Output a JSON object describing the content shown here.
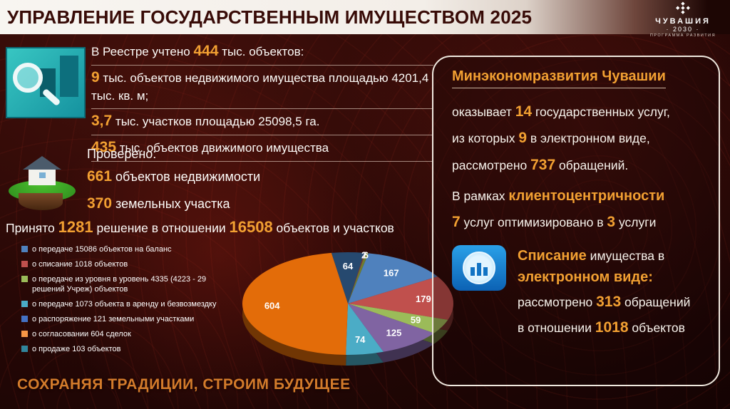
{
  "accent_color": "#F2A032",
  "header": {
    "title": "УПРАВЛЕНИЕ ГОСУДАРСТВЕННЫМ ИМУЩЕСТВОМ 2025"
  },
  "logo": {
    "ornament_row1": "◆",
    "ornament_row2": "◆ ◆ ◆",
    "ornament_row3": "◆",
    "region": "ЧУВАШИЯ",
    "year": "· 2030 ·",
    "subtitle": "ПРОГРАММА РАЗВИТИЯ"
  },
  "registry": {
    "line1_pre": "В Реестре учтено ",
    "line1_num": "444",
    "line1_post": " тыс. объектов:",
    "line2_num": "9",
    "line2_post": " тыс. объектов недвижимого имущества площадью 4201,4 тыс. кв. м;",
    "line3_num": "3,7",
    "line3_post": " тыс.  участков площадью 25098,5 га.",
    "line4_num": "435",
    "line4_post": " тыс. объектов движимого имущества"
  },
  "checked": {
    "title": "Проверено:",
    "line1_num": "661",
    "line1_post": " объектов недвижимости",
    "line2_num": "370",
    "line2_post": " земельных участка"
  },
  "decisions": {
    "pre": "Принято ",
    "num1": "1281",
    "mid": " решение в отношении ",
    "num2": "16508",
    "post": " объектов и участков"
  },
  "chart_data": {
    "type": "pie",
    "style": "3d",
    "labels": [
      "64",
      "2",
      "6",
      "167",
      "179",
      "59",
      "125",
      "74",
      "604"
    ],
    "values": [
      64,
      2,
      6,
      167,
      179,
      59,
      125,
      74,
      604
    ],
    "colors": [
      "#26496f",
      "#8c3a36",
      "#6f7d2f",
      "#4f81bd",
      "#c0504d",
      "#9bbb59",
      "#8064a2",
      "#4bacc6",
      "#e36c09"
    ],
    "start_angle_deg": -9,
    "legend_position": "left",
    "legend": [
      {
        "color": "#4f81bd",
        "label": "о передаче 15086 объектов на баланс"
      },
      {
        "color": "#c0504d",
        "label": "о списание 1018 объектов"
      },
      {
        "color": "#9bbb59",
        "label": "о передаче из уровня в уровень 4335 (4223 - 29 решений Учреж) объектов"
      },
      {
        "color": "#4bacc6",
        "label": "о передаче 1073 объекта в аренду и безвозмездку"
      },
      {
        "color": "#4472c4",
        "label": "о распоряжение 121 земельными участками"
      },
      {
        "color": "#f79646",
        "label": "о согласовании 604 сделок"
      },
      {
        "color": "#31859c",
        "label": "о продаже 103 объектов"
      }
    ]
  },
  "ministry": {
    "title": "Минэкономразвития Чувашии",
    "l1_pre": "оказывает  ",
    "l1_num": "14",
    "l1_post": " государственных услуг,",
    "l2_pre": "из которых ",
    "l2_num": "9",
    "l2_post": "  в электронном виде,",
    "l3_pre": "рассмотрено ",
    "l3_num": "737",
    "l3_post": " обращений.",
    "l4_pre": "В рамках ",
    "l4_strong": "клиентоцентричности",
    "l5_num1": "7",
    "l5_mid": " услуг оптимизировано в ",
    "l5_num2": "3",
    "l5_post": " услуги"
  },
  "writeoff": {
    "t1_strong": "Списание",
    "t1_rest": " имущества в",
    "t2": "электронном виде:",
    "l1_pre": "рассмотрено ",
    "l1_num": "313",
    "l1_post": " обращений",
    "l2_pre": "в отношении ",
    "l2_num": "1018",
    "l2_post": " объектов"
  },
  "footer": {
    "slogan": "СОХРАНЯЯ ТРАДИЦИИ, СТРОИМ БУДУЩЕЕ"
  }
}
